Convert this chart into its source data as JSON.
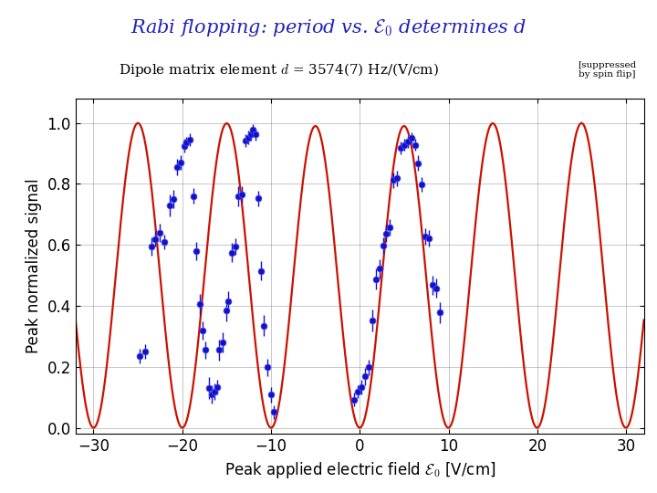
{
  "title": "Rabi flopping: period vs. $\\mathcal{E}_0$ determines d",
  "subtitle_main": "Dipole matrix element $d$ = 3574(7) Hz/(V/cm)",
  "subtitle_small": "[suppressed\nby spin flip]",
  "xlabel": "Peak applied electric field $\\mathcal{E}_0$ [V/cm]",
  "ylabel": "Peak normalized signal",
  "xlim": [
    -32,
    32
  ],
  "ylim": [
    -0.02,
    1.08
  ],
  "yticks": [
    0.0,
    0.2,
    0.4,
    0.6,
    0.8,
    1.0
  ],
  "xticks": [
    -30,
    -20,
    -10,
    0,
    10,
    20,
    30
  ],
  "title_color": "#2222BB",
  "curve_color": "#CC1100",
  "data_color": "#1111CC",
  "background_color": "#ffffff",
  "curve_linewidth": 1.6,
  "d_val": 3574.0,
  "delta_Vcm": 0.5,
  "T_param": 2.8e-05,
  "data_points": [
    [
      -24.8,
      0.235,
      0.025
    ],
    [
      -24.2,
      0.25,
      0.025
    ],
    [
      -23.5,
      0.595,
      0.03
    ],
    [
      -23.0,
      0.62,
      0.025
    ],
    [
      -22.5,
      0.64,
      0.03
    ],
    [
      -22.0,
      0.61,
      0.025
    ],
    [
      -21.4,
      0.73,
      0.035
    ],
    [
      -21.0,
      0.75,
      0.03
    ],
    [
      -20.6,
      0.855,
      0.028
    ],
    [
      -20.2,
      0.87,
      0.025
    ],
    [
      -19.8,
      0.925,
      0.022
    ],
    [
      -19.5,
      0.935,
      0.02
    ],
    [
      -19.1,
      0.945,
      0.02
    ],
    [
      -18.7,
      0.76,
      0.025
    ],
    [
      -18.4,
      0.58,
      0.03
    ],
    [
      -18.0,
      0.405,
      0.035
    ],
    [
      -17.7,
      0.32,
      0.03
    ],
    [
      -17.4,
      0.255,
      0.028
    ],
    [
      -17.0,
      0.13,
      0.035
    ],
    [
      -16.7,
      0.11,
      0.03
    ],
    [
      -16.4,
      0.118,
      0.028
    ],
    [
      -16.1,
      0.133,
      0.025
    ],
    [
      -15.8,
      0.255,
      0.035
    ],
    [
      -15.4,
      0.28,
      0.032
    ],
    [
      -15.0,
      0.385,
      0.035
    ],
    [
      -14.8,
      0.415,
      0.032
    ],
    [
      -14.4,
      0.575,
      0.032
    ],
    [
      -14.0,
      0.595,
      0.028
    ],
    [
      -13.7,
      0.76,
      0.032
    ],
    [
      -13.3,
      0.765,
      0.028
    ],
    [
      -12.9,
      0.942,
      0.022
    ],
    [
      -12.6,
      0.952,
      0.022
    ],
    [
      -12.3,
      0.962,
      0.02
    ],
    [
      -12.0,
      0.978,
      0.018
    ],
    [
      -11.7,
      0.962,
      0.02
    ],
    [
      -11.4,
      0.752,
      0.025
    ],
    [
      -11.1,
      0.515,
      0.032
    ],
    [
      -10.8,
      0.335,
      0.035
    ],
    [
      -10.4,
      0.198,
      0.028
    ],
    [
      -10.0,
      0.108,
      0.025
    ],
    [
      -9.7,
      0.052,
      0.022
    ],
    [
      -0.6,
      0.092,
      0.022
    ],
    [
      -0.2,
      0.118,
      0.022
    ],
    [
      0.2,
      0.133,
      0.025
    ],
    [
      0.6,
      0.168,
      0.028
    ],
    [
      1.0,
      0.198,
      0.025
    ],
    [
      1.4,
      0.352,
      0.035
    ],
    [
      1.8,
      0.488,
      0.035
    ],
    [
      2.2,
      0.522,
      0.032
    ],
    [
      2.6,
      0.598,
      0.028
    ],
    [
      3.0,
      0.638,
      0.028
    ],
    [
      3.4,
      0.658,
      0.028
    ],
    [
      3.8,
      0.812,
      0.025
    ],
    [
      4.2,
      0.818,
      0.025
    ],
    [
      4.6,
      0.918,
      0.022
    ],
    [
      5.0,
      0.928,
      0.02
    ],
    [
      5.4,
      0.938,
      0.02
    ],
    [
      5.8,
      0.952,
      0.018
    ],
    [
      6.2,
      0.928,
      0.02
    ],
    [
      6.6,
      0.868,
      0.025
    ],
    [
      7.0,
      0.798,
      0.025
    ],
    [
      7.4,
      0.628,
      0.028
    ],
    [
      7.8,
      0.622,
      0.028
    ],
    [
      8.2,
      0.468,
      0.032
    ],
    [
      8.6,
      0.458,
      0.032
    ],
    [
      9.0,
      0.378,
      0.035
    ]
  ],
  "figsize": [
    7.2,
    5.4
  ],
  "dpi": 100
}
